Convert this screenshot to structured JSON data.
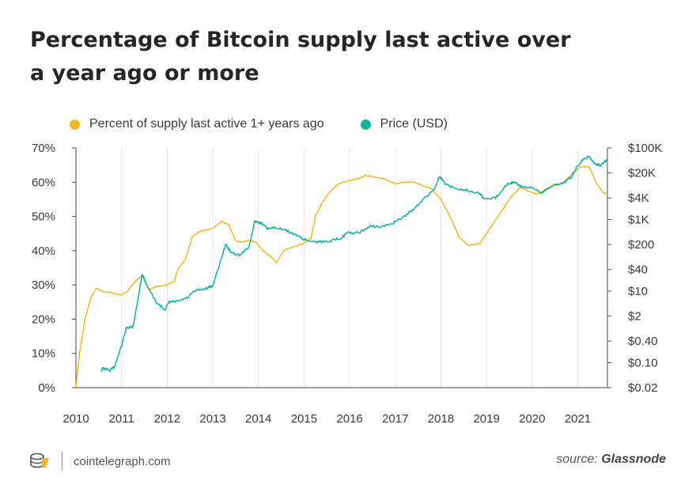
{
  "title": "Percentage of Bitcoin supply last active over a year ago or more",
  "colors": {
    "supply": "#f2b824",
    "price": "#10b3a3",
    "grid": "#e6e6e6",
    "axis": "#4a4a4a"
  },
  "footer": {
    "site": "cointelegraph.com",
    "source_prefix": "source:",
    "source_name": "Glassnode",
    "logo_icon": "cointelegraph-logo-icon"
  },
  "chart_data": {
    "type": "line",
    "title": "Percentage of Bitcoin supply last active over a year ago or more",
    "x_ticks": [
      "2010",
      "2011",
      "2012",
      "2013",
      "2014",
      "2015",
      "2016",
      "2017",
      "2018",
      "2019",
      "2020",
      "2021"
    ],
    "x_range": [
      2010.0,
      2021.65
    ],
    "y_left": {
      "ticks": [
        "0%",
        "10%",
        "20%",
        "30%",
        "40%",
        "50%",
        "60%",
        "70%"
      ],
      "range": [
        0,
        70
      ]
    },
    "y_right": {
      "scale": "log",
      "ticks": [
        "$0.02",
        "$0.10",
        "$0.40",
        "$2",
        "$10",
        "$40",
        "$200",
        "$1K",
        "$4K",
        "$20K",
        "$100K"
      ],
      "tick_values": [
        0.02,
        0.1,
        0.4,
        2,
        10,
        40,
        200,
        1000,
        4000,
        20000,
        100000
      ],
      "range": [
        0.02,
        100000
      ]
    },
    "grid": "vertical",
    "legend": "top",
    "series": [
      {
        "name": "Percent of supply last active 1+ years ago",
        "axis": "left",
        "points": [
          [
            2010.0,
            0
          ],
          [
            2010.08,
            10
          ],
          [
            2010.2,
            20
          ],
          [
            2010.32,
            26
          ],
          [
            2010.45,
            29
          ],
          [
            2010.6,
            28
          ],
          [
            2010.85,
            27.5
          ],
          [
            2011.0,
            27
          ],
          [
            2011.15,
            28.5
          ],
          [
            2011.3,
            31
          ],
          [
            2011.42,
            32.5
          ],
          [
            2011.5,
            32
          ],
          [
            2011.55,
            30
          ],
          [
            2011.62,
            28.5
          ],
          [
            2011.75,
            29.5
          ],
          [
            2012.0,
            30
          ],
          [
            2012.15,
            31
          ],
          [
            2012.25,
            35
          ],
          [
            2012.4,
            37.5
          ],
          [
            2012.55,
            44
          ],
          [
            2012.7,
            45.5
          ],
          [
            2012.85,
            46
          ],
          [
            2013.0,
            46.5
          ],
          [
            2013.2,
            48.5
          ],
          [
            2013.35,
            47.5
          ],
          [
            2013.5,
            43
          ],
          [
            2013.6,
            42.5
          ],
          [
            2013.8,
            43
          ],
          [
            2013.95,
            42.5
          ],
          [
            2014.1,
            40
          ],
          [
            2014.25,
            38.5
          ],
          [
            2014.4,
            36.5
          ],
          [
            2014.55,
            40
          ],
          [
            2014.75,
            41
          ],
          [
            2014.95,
            42
          ],
          [
            2015.15,
            43.5
          ],
          [
            2015.25,
            50
          ],
          [
            2015.4,
            54
          ],
          [
            2015.55,
            57
          ],
          [
            2015.75,
            59.5
          ],
          [
            2016.0,
            60.5
          ],
          [
            2016.2,
            61
          ],
          [
            2016.35,
            62
          ],
          [
            2016.55,
            61.5
          ],
          [
            2016.75,
            61
          ],
          [
            2017.0,
            59.5
          ],
          [
            2017.2,
            60
          ],
          [
            2017.4,
            60
          ],
          [
            2017.6,
            59
          ],
          [
            2017.8,
            58
          ],
          [
            2018.0,
            55
          ],
          [
            2018.2,
            50
          ],
          [
            2018.4,
            44
          ],
          [
            2018.6,
            41.5
          ],
          [
            2018.85,
            42
          ],
          [
            2019.05,
            46
          ],
          [
            2019.25,
            50
          ],
          [
            2019.4,
            53
          ],
          [
            2019.55,
            56
          ],
          [
            2019.75,
            58.5
          ],
          [
            2019.9,
            57.5
          ],
          [
            2020.1,
            56.5
          ],
          [
            2020.25,
            57.5
          ],
          [
            2020.45,
            59
          ],
          [
            2020.65,
            59.5
          ],
          [
            2020.85,
            62
          ],
          [
            2021.05,
            64.5
          ],
          [
            2021.25,
            64.5
          ],
          [
            2021.4,
            60
          ],
          [
            2021.55,
            57
          ],
          [
            2021.65,
            56.5
          ]
        ]
      },
      {
        "name": "Price (USD)",
        "axis": "right",
        "points": [
          [
            2010.55,
            0.06
          ],
          [
            2010.6,
            0.07
          ],
          [
            2010.75,
            0.06
          ],
          [
            2010.85,
            0.08
          ],
          [
            2011.0,
            0.3
          ],
          [
            2011.1,
            0.9
          ],
          [
            2011.25,
            1
          ],
          [
            2011.35,
            5
          ],
          [
            2011.45,
            30
          ],
          [
            2011.55,
            15
          ],
          [
            2011.75,
            5
          ],
          [
            2011.95,
            3
          ],
          [
            2012.05,
            5
          ],
          [
            2012.2,
            5
          ],
          [
            2012.45,
            6.5
          ],
          [
            2012.6,
            10
          ],
          [
            2012.85,
            12
          ],
          [
            2013.0,
            14
          ],
          [
            2013.2,
            90
          ],
          [
            2013.28,
            200
          ],
          [
            2013.4,
            120
          ],
          [
            2013.6,
            100
          ],
          [
            2013.8,
            180
          ],
          [
            2013.92,
            900
          ],
          [
            2014.05,
            800
          ],
          [
            2014.2,
            550
          ],
          [
            2014.4,
            600
          ],
          [
            2014.6,
            500
          ],
          [
            2014.8,
            380
          ],
          [
            2015.0,
            280
          ],
          [
            2015.2,
            240
          ],
          [
            2015.4,
            240
          ],
          [
            2015.6,
            260
          ],
          [
            2015.8,
            300
          ],
          [
            2015.95,
            420
          ],
          [
            2016.2,
            420
          ],
          [
            2016.45,
            650
          ],
          [
            2016.7,
            620
          ],
          [
            2016.9,
            750
          ],
          [
            2017.1,
            1000
          ],
          [
            2017.35,
            1700
          ],
          [
            2017.6,
            3500
          ],
          [
            2017.85,
            7000
          ],
          [
            2017.97,
            16000
          ],
          [
            2018.1,
            10000
          ],
          [
            2018.3,
            7500
          ],
          [
            2018.6,
            6500
          ],
          [
            2018.85,
            5500
          ],
          [
            2018.95,
            3700
          ],
          [
            2019.2,
            4000
          ],
          [
            2019.45,
            10000
          ],
          [
            2019.6,
            11000
          ],
          [
            2019.75,
            8500
          ],
          [
            2020.0,
            7500
          ],
          [
            2020.2,
            5500
          ],
          [
            2020.3,
            7000
          ],
          [
            2020.5,
            9300
          ],
          [
            2020.7,
            10800
          ],
          [
            2020.85,
            15000
          ],
          [
            2020.98,
            29000
          ],
          [
            2021.1,
            45000
          ],
          [
            2021.25,
            58000
          ],
          [
            2021.37,
            37000
          ],
          [
            2021.5,
            33000
          ],
          [
            2021.58,
            40000
          ],
          [
            2021.65,
            47000
          ]
        ]
      }
    ]
  }
}
